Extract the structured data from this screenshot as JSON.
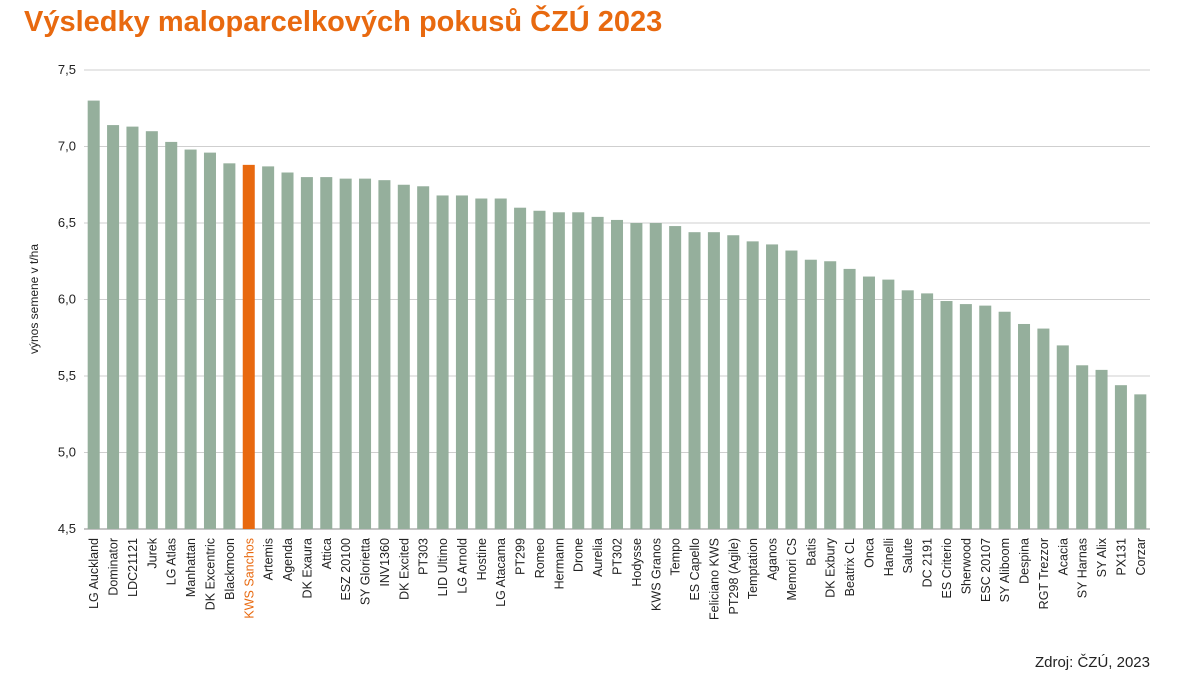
{
  "chart_data": {
    "type": "bar",
    "title": "Výsledky maloparcelkových pokusů ČZÚ 2023",
    "ylabel": "výnos semene v t/ha",
    "xlabel": "",
    "ylim": [
      4.5,
      7.5
    ],
    "yticks": [
      "4,5",
      "5,0",
      "5,5",
      "6,0",
      "6,5",
      "7,0",
      "7,5"
    ],
    "grid": true,
    "categories": [
      "LG Auckland",
      "Dominator",
      "LDC21121",
      "Jurek",
      "LG Atlas",
      "Manhattan",
      "DK Excentric",
      "Blackmoon",
      "KWS Sanchos",
      "Artemis",
      "Agenda",
      "DK Exaura",
      "Attica",
      "ESZ 20100",
      "SY Glorietta",
      "INV1360",
      "DK Excited",
      "PT303",
      "LID Ultimo",
      "LG Arnold",
      "Hostine",
      "LG Atacama",
      "PT299",
      "Romeo",
      "Hermann",
      "Drone",
      "Aurelia",
      "PT302",
      "Hodysse",
      "KWS Granos",
      "Tempo",
      "ES Capello",
      "Feliciano KWS",
      "PT298 (Agile)",
      "Temptation",
      "Aganos",
      "Memori CS",
      "Batis",
      "DK Exbury",
      "Beatrix CL",
      "Onca",
      "Hanelli",
      "Salute",
      "DC 2191",
      "ES Criterio",
      "Sherwood",
      "ESC 20107",
      "SY Aliboom",
      "Despina",
      "RGT Trezzor",
      "Acacia",
      "SY Harnas",
      "SY Alix",
      "PX131",
      "Corzar"
    ],
    "values": [
      7.3,
      7.14,
      7.13,
      7.1,
      7.03,
      6.98,
      6.96,
      6.89,
      6.88,
      6.87,
      6.83,
      6.8,
      6.8,
      6.79,
      6.79,
      6.78,
      6.75,
      6.74,
      6.68,
      6.68,
      6.66,
      6.66,
      6.6,
      6.58,
      6.57,
      6.57,
      6.54,
      6.52,
      6.5,
      6.5,
      6.48,
      6.44,
      6.44,
      6.42,
      6.38,
      6.36,
      6.32,
      6.26,
      6.25,
      6.2,
      6.15,
      6.13,
      6.06,
      6.04,
      5.99,
      5.97,
      5.96,
      5.92,
      5.84,
      5.81,
      5.7,
      5.57,
      5.54,
      5.44,
      5.38
    ],
    "highlight_category": "KWS Sanchos",
    "colors": {
      "bar": "#95af9c",
      "highlight": "#e8690f",
      "title": "#e8690f",
      "grid": "#cfcfcf",
      "text": "#222222"
    }
  },
  "source": "Zdroj: ČZÚ, 2023"
}
